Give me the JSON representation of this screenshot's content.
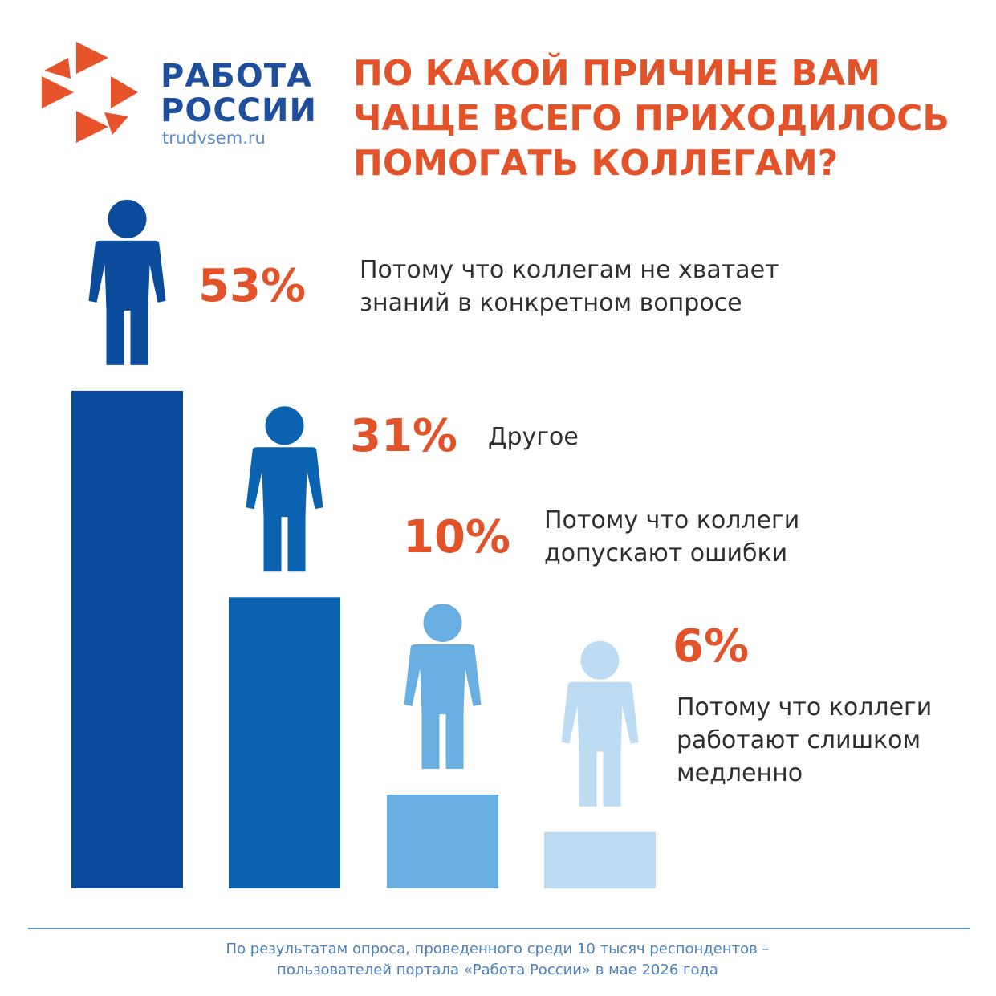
{
  "logo": {
    "line1": "РАБОТА",
    "line2": "РОССИИ",
    "site": "trudvsem.ru"
  },
  "chart_data": {
    "type": "bar",
    "title": "ПО КАКОЙ ПРИЧИНЕ ВАМ ЧАЩЕ ВСЕГО ПРИХОДИЛОСЬ ПОМОГАТЬ КОЛЛЕГАМ?",
    "categories": [
      "Потому что коллегам не хватает знаний в конкретном вопросе",
      "Другое",
      "Потому что коллеги допускают ошибки",
      "Потому что коллеги работают слишком медленно"
    ],
    "values": [
      53,
      31,
      10,
      6
    ],
    "value_labels": [
      "53%",
      "31%",
      "10%",
      "6%"
    ],
    "colors": [
      "#0b4b9b",
      "#0a62b0",
      "#6aafe2",
      "#bddcf3"
    ]
  },
  "footer": "По результатам опроса, проведенного среди 10 тысяч респондентов – пользователей портала «Работа России» в мае 2026 года"
}
